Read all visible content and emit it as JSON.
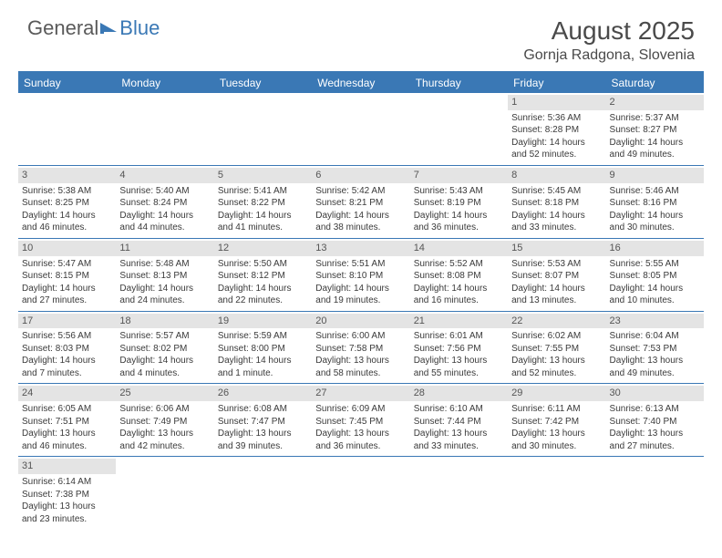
{
  "logo": {
    "text1": "General",
    "text2": "Blue"
  },
  "title": "August 2025",
  "location": "Gornja Radgona, Slovenia",
  "header_color": "#3a78b5",
  "daynum_bg": "#e4e4e4",
  "text_color": "#3a3a3a",
  "weekdays": [
    "Sunday",
    "Monday",
    "Tuesday",
    "Wednesday",
    "Thursday",
    "Friday",
    "Saturday"
  ],
  "weeks": [
    [
      {
        "n": "",
        "sr": "",
        "ss": "",
        "d1": "",
        "d2": ""
      },
      {
        "n": "",
        "sr": "",
        "ss": "",
        "d1": "",
        "d2": ""
      },
      {
        "n": "",
        "sr": "",
        "ss": "",
        "d1": "",
        "d2": ""
      },
      {
        "n": "",
        "sr": "",
        "ss": "",
        "d1": "",
        "d2": ""
      },
      {
        "n": "",
        "sr": "",
        "ss": "",
        "d1": "",
        "d2": ""
      },
      {
        "n": "1",
        "sr": "Sunrise: 5:36 AM",
        "ss": "Sunset: 8:28 PM",
        "d1": "Daylight: 14 hours",
        "d2": "and 52 minutes."
      },
      {
        "n": "2",
        "sr": "Sunrise: 5:37 AM",
        "ss": "Sunset: 8:27 PM",
        "d1": "Daylight: 14 hours",
        "d2": "and 49 minutes."
      }
    ],
    [
      {
        "n": "3",
        "sr": "Sunrise: 5:38 AM",
        "ss": "Sunset: 8:25 PM",
        "d1": "Daylight: 14 hours",
        "d2": "and 46 minutes."
      },
      {
        "n": "4",
        "sr": "Sunrise: 5:40 AM",
        "ss": "Sunset: 8:24 PM",
        "d1": "Daylight: 14 hours",
        "d2": "and 44 minutes."
      },
      {
        "n": "5",
        "sr": "Sunrise: 5:41 AM",
        "ss": "Sunset: 8:22 PM",
        "d1": "Daylight: 14 hours",
        "d2": "and 41 minutes."
      },
      {
        "n": "6",
        "sr": "Sunrise: 5:42 AM",
        "ss": "Sunset: 8:21 PM",
        "d1": "Daylight: 14 hours",
        "d2": "and 38 minutes."
      },
      {
        "n": "7",
        "sr": "Sunrise: 5:43 AM",
        "ss": "Sunset: 8:19 PM",
        "d1": "Daylight: 14 hours",
        "d2": "and 36 minutes."
      },
      {
        "n": "8",
        "sr": "Sunrise: 5:45 AM",
        "ss": "Sunset: 8:18 PM",
        "d1": "Daylight: 14 hours",
        "d2": "and 33 minutes."
      },
      {
        "n": "9",
        "sr": "Sunrise: 5:46 AM",
        "ss": "Sunset: 8:16 PM",
        "d1": "Daylight: 14 hours",
        "d2": "and 30 minutes."
      }
    ],
    [
      {
        "n": "10",
        "sr": "Sunrise: 5:47 AM",
        "ss": "Sunset: 8:15 PM",
        "d1": "Daylight: 14 hours",
        "d2": "and 27 minutes."
      },
      {
        "n": "11",
        "sr": "Sunrise: 5:48 AM",
        "ss": "Sunset: 8:13 PM",
        "d1": "Daylight: 14 hours",
        "d2": "and 24 minutes."
      },
      {
        "n": "12",
        "sr": "Sunrise: 5:50 AM",
        "ss": "Sunset: 8:12 PM",
        "d1": "Daylight: 14 hours",
        "d2": "and 22 minutes."
      },
      {
        "n": "13",
        "sr": "Sunrise: 5:51 AM",
        "ss": "Sunset: 8:10 PM",
        "d1": "Daylight: 14 hours",
        "d2": "and 19 minutes."
      },
      {
        "n": "14",
        "sr": "Sunrise: 5:52 AM",
        "ss": "Sunset: 8:08 PM",
        "d1": "Daylight: 14 hours",
        "d2": "and 16 minutes."
      },
      {
        "n": "15",
        "sr": "Sunrise: 5:53 AM",
        "ss": "Sunset: 8:07 PM",
        "d1": "Daylight: 14 hours",
        "d2": "and 13 minutes."
      },
      {
        "n": "16",
        "sr": "Sunrise: 5:55 AM",
        "ss": "Sunset: 8:05 PM",
        "d1": "Daylight: 14 hours",
        "d2": "and 10 minutes."
      }
    ],
    [
      {
        "n": "17",
        "sr": "Sunrise: 5:56 AM",
        "ss": "Sunset: 8:03 PM",
        "d1": "Daylight: 14 hours",
        "d2": "and 7 minutes."
      },
      {
        "n": "18",
        "sr": "Sunrise: 5:57 AM",
        "ss": "Sunset: 8:02 PM",
        "d1": "Daylight: 14 hours",
        "d2": "and 4 minutes."
      },
      {
        "n": "19",
        "sr": "Sunrise: 5:59 AM",
        "ss": "Sunset: 8:00 PM",
        "d1": "Daylight: 14 hours",
        "d2": "and 1 minute."
      },
      {
        "n": "20",
        "sr": "Sunrise: 6:00 AM",
        "ss": "Sunset: 7:58 PM",
        "d1": "Daylight: 13 hours",
        "d2": "and 58 minutes."
      },
      {
        "n": "21",
        "sr": "Sunrise: 6:01 AM",
        "ss": "Sunset: 7:56 PM",
        "d1": "Daylight: 13 hours",
        "d2": "and 55 minutes."
      },
      {
        "n": "22",
        "sr": "Sunrise: 6:02 AM",
        "ss": "Sunset: 7:55 PM",
        "d1": "Daylight: 13 hours",
        "d2": "and 52 minutes."
      },
      {
        "n": "23",
        "sr": "Sunrise: 6:04 AM",
        "ss": "Sunset: 7:53 PM",
        "d1": "Daylight: 13 hours",
        "d2": "and 49 minutes."
      }
    ],
    [
      {
        "n": "24",
        "sr": "Sunrise: 6:05 AM",
        "ss": "Sunset: 7:51 PM",
        "d1": "Daylight: 13 hours",
        "d2": "and 46 minutes."
      },
      {
        "n": "25",
        "sr": "Sunrise: 6:06 AM",
        "ss": "Sunset: 7:49 PM",
        "d1": "Daylight: 13 hours",
        "d2": "and 42 minutes."
      },
      {
        "n": "26",
        "sr": "Sunrise: 6:08 AM",
        "ss": "Sunset: 7:47 PM",
        "d1": "Daylight: 13 hours",
        "d2": "and 39 minutes."
      },
      {
        "n": "27",
        "sr": "Sunrise: 6:09 AM",
        "ss": "Sunset: 7:45 PM",
        "d1": "Daylight: 13 hours",
        "d2": "and 36 minutes."
      },
      {
        "n": "28",
        "sr": "Sunrise: 6:10 AM",
        "ss": "Sunset: 7:44 PM",
        "d1": "Daylight: 13 hours",
        "d2": "and 33 minutes."
      },
      {
        "n": "29",
        "sr": "Sunrise: 6:11 AM",
        "ss": "Sunset: 7:42 PM",
        "d1": "Daylight: 13 hours",
        "d2": "and 30 minutes."
      },
      {
        "n": "30",
        "sr": "Sunrise: 6:13 AM",
        "ss": "Sunset: 7:40 PM",
        "d1": "Daylight: 13 hours",
        "d2": "and 27 minutes."
      }
    ],
    [
      {
        "n": "31",
        "sr": "Sunrise: 6:14 AM",
        "ss": "Sunset: 7:38 PM",
        "d1": "Daylight: 13 hours",
        "d2": "and 23 minutes."
      },
      {
        "n": "",
        "sr": "",
        "ss": "",
        "d1": "",
        "d2": ""
      },
      {
        "n": "",
        "sr": "",
        "ss": "",
        "d1": "",
        "d2": ""
      },
      {
        "n": "",
        "sr": "",
        "ss": "",
        "d1": "",
        "d2": ""
      },
      {
        "n": "",
        "sr": "",
        "ss": "",
        "d1": "",
        "d2": ""
      },
      {
        "n": "",
        "sr": "",
        "ss": "",
        "d1": "",
        "d2": ""
      },
      {
        "n": "",
        "sr": "",
        "ss": "",
        "d1": "",
        "d2": ""
      }
    ]
  ]
}
